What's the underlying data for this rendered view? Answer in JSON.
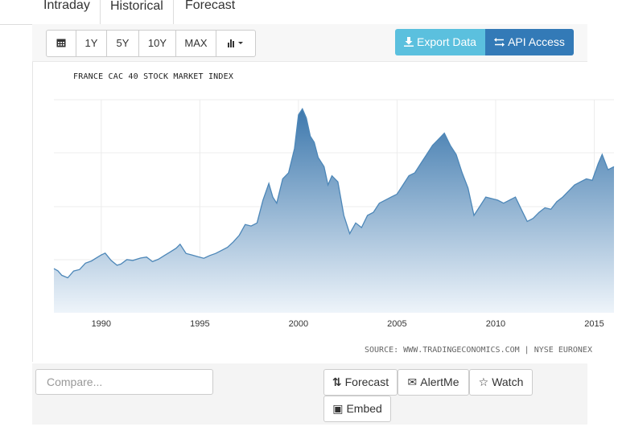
{
  "tabs": {
    "intraday": "Intraday",
    "historical": "Historical",
    "forecast": "Forecast"
  },
  "toolbar": {
    "calendar_icon": "calendar-icon",
    "range_1y": "1Y",
    "range_5y": "5Y",
    "range_10y": "10Y",
    "range_max": "MAX",
    "chart_type_icon": "bar-chart-icon",
    "export_label": "Export Data",
    "api_label": "API Access",
    "export_icon": "download-icon",
    "api_icon": "swap-icon"
  },
  "source": "SOURCE: WWW.TRADINGECONOMICS.COM | NYSE EURONEX",
  "bottom": {
    "compare_placeholder": "Compare...",
    "forecast_label": "Forecast",
    "alertme_label": "AlertMe",
    "watch_label": "Watch",
    "embed_label": "Embed"
  },
  "colors": {
    "line": "#4d87b8",
    "fill_top": "#3d78ad",
    "fill_bottom": "#eef4fa",
    "export": "#5bc0de",
    "api": "#337ab7"
  },
  "chart_data": {
    "type": "area",
    "title": "FRANCE CAC 40 STOCK MARKET INDEX",
    "xlabel": "",
    "ylabel": "",
    "x_ticks": [
      "1990",
      "1995",
      "2000",
      "2005",
      "2010",
      "2015"
    ],
    "xlim": [
      1987.6,
      2016.0
    ],
    "ylim": [
      0,
      7000
    ],
    "grid": true,
    "series": [
      {
        "x": [
          1987.6,
          1987.8,
          1988.0,
          1988.3,
          1988.6,
          1988.9,
          1989.2,
          1989.5,
          1989.8,
          1990.0,
          1990.2,
          1990.5,
          1990.8,
          1991.0,
          1991.3,
          1991.6,
          1992.0,
          1992.3,
          1992.6,
          1992.9,
          1993.2,
          1993.5,
          1993.8,
          1994.0,
          1994.3,
          1994.6,
          1994.9,
          1995.2,
          1995.5,
          1995.8,
          1996.1,
          1996.4,
          1996.7,
          1997.0,
          1997.3,
          1997.6,
          1997.9,
          1998.2,
          1998.5,
          1998.7,
          1998.9,
          1999.2,
          1999.5,
          1999.8,
          2000.0,
          2000.2,
          2000.4,
          2000.6,
          2000.8,
          2001.0,
          2001.3,
          2001.5,
          2001.7,
          2002.0,
          2002.3,
          2002.6,
          2002.9,
          2003.2,
          2003.5,
          2003.8,
          2004.1,
          2004.4,
          2004.7,
          2005.0,
          2005.3,
          2005.6,
          2005.9,
          2006.2,
          2006.5,
          2006.8,
          2007.1,
          2007.4,
          2007.7,
          2008.0,
          2008.3,
          2008.6,
          2008.9,
          2009.2,
          2009.5,
          2009.8,
          2010.1,
          2010.4,
          2010.7,
          2011.0,
          2011.3,
          2011.6,
          2011.9,
          2012.2,
          2012.5,
          2012.8,
          2013.1,
          2013.4,
          2013.7,
          2014.0,
          2014.3,
          2014.6,
          2014.9,
          2015.2,
          2015.4,
          2015.7,
          2016.0
        ],
        "values": [
          1450,
          1380,
          1230,
          1150,
          1370,
          1420,
          1630,
          1700,
          1820,
          1900,
          1960,
          1720,
          1560,
          1600,
          1750,
          1720,
          1800,
          1830,
          1680,
          1760,
          1880,
          2000,
          2120,
          2250,
          1950,
          1900,
          1840,
          1790,
          1880,
          1950,
          2050,
          2150,
          2330,
          2550,
          2900,
          2850,
          2950,
          3700,
          4250,
          3800,
          3600,
          4400,
          4600,
          5400,
          6500,
          6700,
          6400,
          5800,
          5600,
          5100,
          4800,
          4200,
          4500,
          4300,
          3200,
          2600,
          2950,
          2800,
          3200,
          3300,
          3600,
          3700,
          3800,
          3900,
          4200,
          4500,
          4600,
          4900,
          5200,
          5500,
          5700,
          5900,
          5500,
          5200,
          4600,
          4100,
          3200,
          3500,
          3800,
          3750,
          3700,
          3600,
          3700,
          3800,
          3400,
          3000,
          3100,
          3300,
          3450,
          3400,
          3650,
          3800,
          4000,
          4200,
          4300,
          4400,
          4350,
          4900,
          5200,
          4700,
          4800
        ]
      }
    ]
  }
}
